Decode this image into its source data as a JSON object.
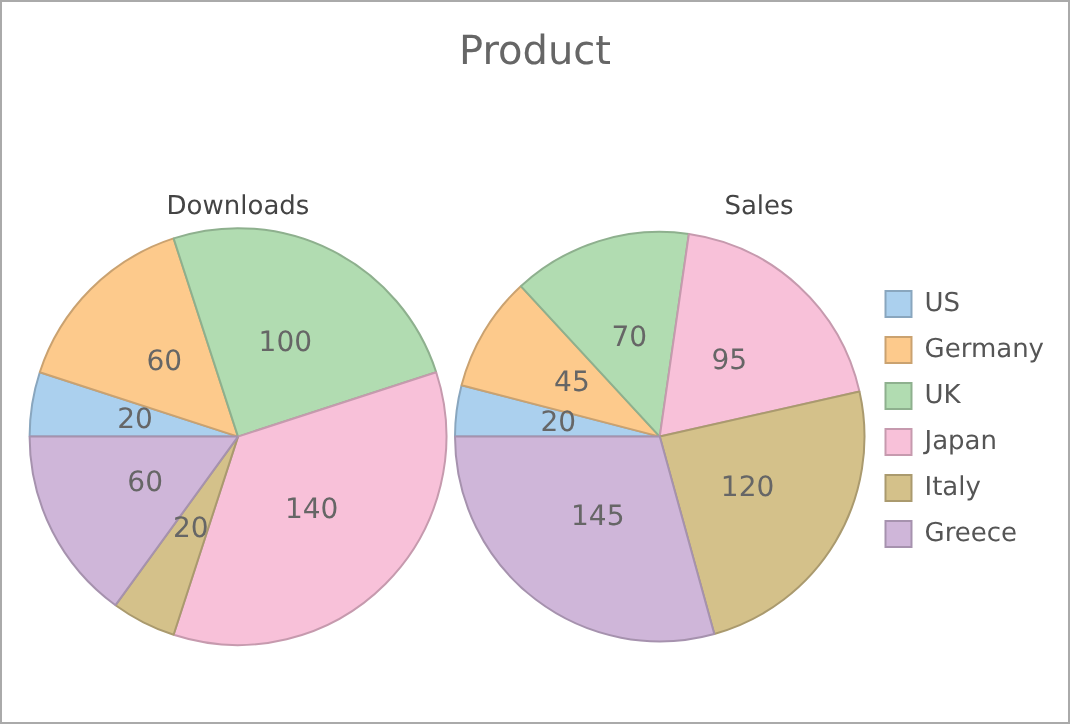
{
  "chart_data": {
    "type": "pie",
    "title": "Product",
    "categories": [
      "US",
      "Germany",
      "UK",
      "Japan",
      "Italy",
      "Greece"
    ],
    "colors": [
      "#abd0ee",
      "#fdca8c",
      "#b1dcb1",
      "#f8c1d9",
      "#d4c18a",
      "#cfb6d9"
    ],
    "series": [
      {
        "name": "Downloads",
        "values": [
          20,
          60,
          100,
          140,
          20,
          60
        ]
      },
      {
        "name": "Sales",
        "values": [
          20,
          45,
          70,
          95,
          120,
          145
        ]
      }
    ],
    "data_labels": true,
    "legend": "right"
  }
}
